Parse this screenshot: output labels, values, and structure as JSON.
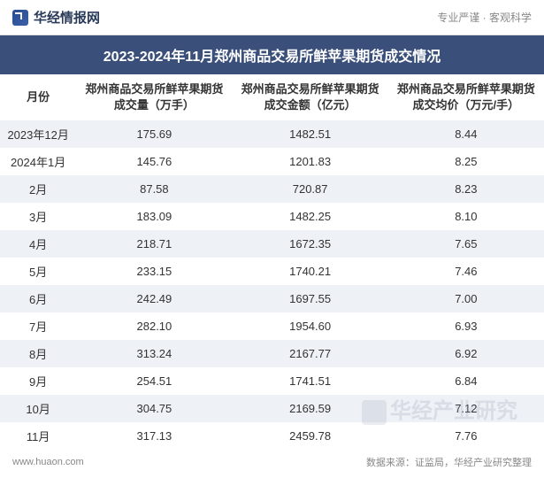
{
  "header": {
    "logo_text": "华经情报网",
    "tagline": "专业严谨 · 客观科学"
  },
  "title": "2023-2024年11月郑州商品交易所鲜苹果期货成交情况",
  "columns": [
    "月份",
    "郑州商品交易所鲜苹果期货成交量（万手）",
    "郑州商品交易所鲜苹果期货成交金额（亿元）",
    "郑州商品交易所鲜苹果期货成交均价（万元/手）"
  ],
  "rows": [
    [
      "2023年12月",
      "175.69",
      "1482.51",
      "8.44"
    ],
    [
      "2024年1月",
      "145.76",
      "1201.83",
      "8.25"
    ],
    [
      "2月",
      "87.58",
      "720.87",
      "8.23"
    ],
    [
      "3月",
      "183.09",
      "1482.25",
      "8.10"
    ],
    [
      "4月",
      "218.71",
      "1672.35",
      "7.65"
    ],
    [
      "5月",
      "233.15",
      "1740.21",
      "7.46"
    ],
    [
      "6月",
      "242.49",
      "1697.55",
      "7.00"
    ],
    [
      "7月",
      "282.10",
      "1954.60",
      "6.93"
    ],
    [
      "8月",
      "313.24",
      "2167.77",
      "6.92"
    ],
    [
      "9月",
      "254.51",
      "1741.51",
      "6.84"
    ],
    [
      "10月",
      "304.75",
      "2169.59",
      "7.12"
    ],
    [
      "11月",
      "317.13",
      "2459.78",
      "7.76"
    ]
  ],
  "footer": {
    "url": "www.huaon.com",
    "source": "数据来源：证监局，华经产业研究整理"
  },
  "watermark": "华经产业研究",
  "colors": {
    "title_bg": "#3a4f7a",
    "row_odd": "#eef1f6",
    "row_even": "#ffffff",
    "text": "#333333",
    "muted": "#888888"
  }
}
